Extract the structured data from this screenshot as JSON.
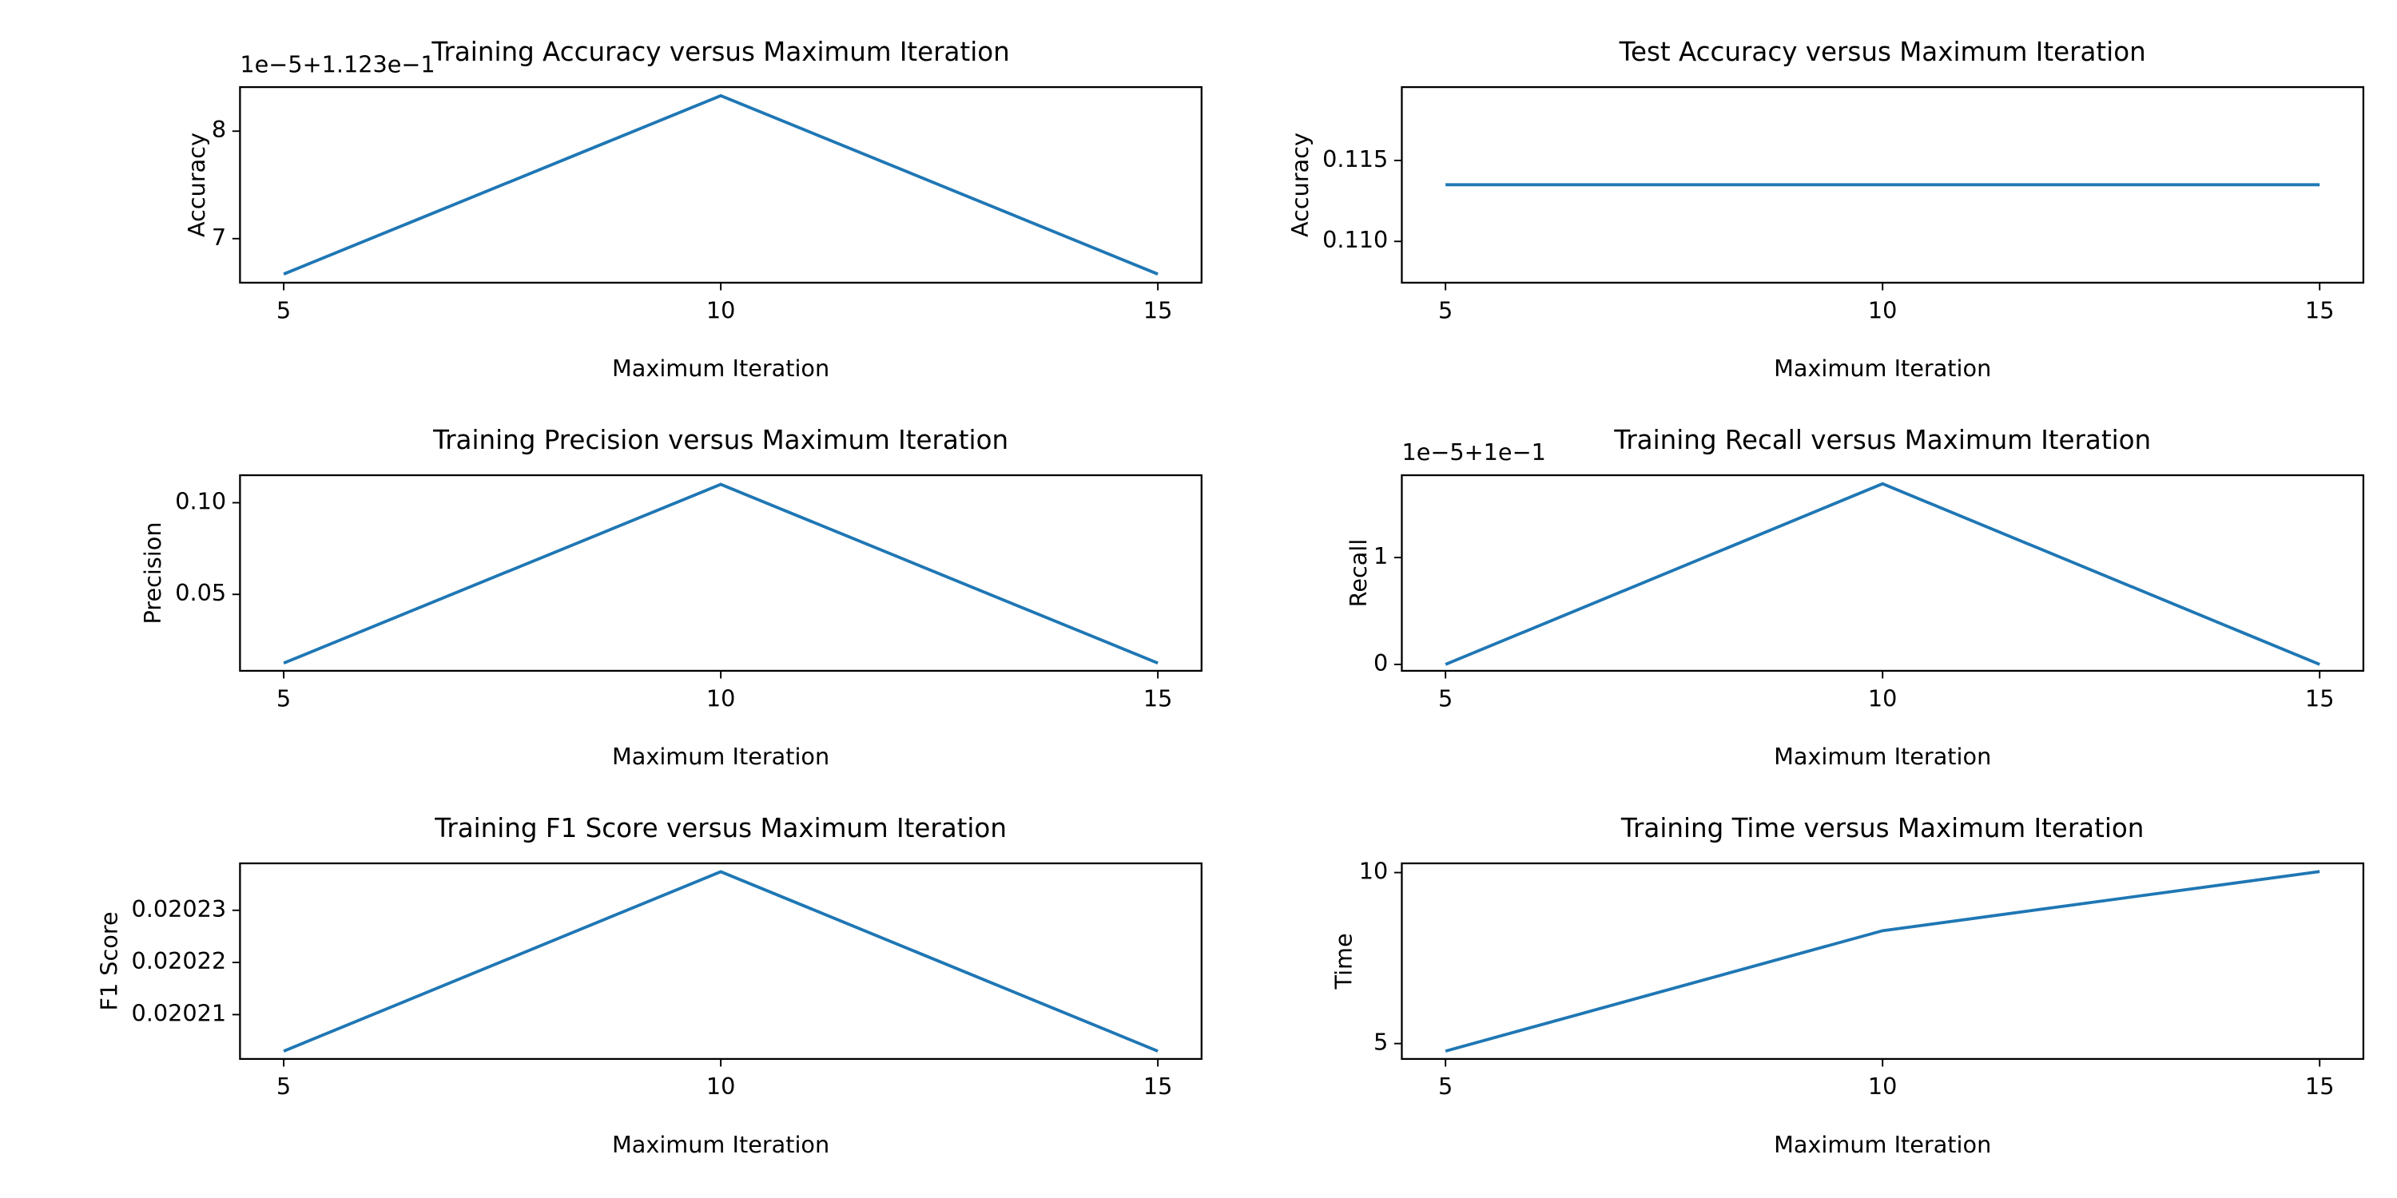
{
  "chart_data": [
    {
      "type": "line",
      "title": "Training Accuracy versus Maximum Iteration",
      "xlabel": "Maximum Iteration",
      "ylabel": "Accuracy",
      "offset_text": "1e−5+1.123e−1",
      "x": [
        5,
        10,
        15
      ],
      "series": [
        {
          "color": "#1f77b4",
          "values": [
            6.67,
            8.33,
            6.67
          ]
        }
      ],
      "xlim": [
        4.5,
        15.5
      ],
      "xticks": [
        5,
        10,
        15
      ],
      "ylim": [
        6.59,
        8.41
      ],
      "yticks": [
        7,
        8
      ]
    },
    {
      "type": "line",
      "title": "Test Accuracy versus Maximum Iteration",
      "xlabel": "Maximum Iteration",
      "ylabel": "Accuracy",
      "x": [
        5,
        10,
        15
      ],
      "series": [
        {
          "color": "#1f77b4",
          "values": [
            0.1135,
            0.1135,
            0.1135
          ]
        }
      ],
      "xlim": [
        4.5,
        15.5
      ],
      "xticks": [
        5,
        10,
        15
      ],
      "ylim": [
        0.10745,
        0.11953
      ],
      "yticks": [
        {
          "value": 0.11,
          "label": "0.110"
        },
        0.115
      ]
    },
    {
      "type": "line",
      "title": "Training Precision versus Maximum Iteration",
      "xlabel": "Maximum Iteration",
      "ylabel": "Precision",
      "x": [
        5,
        10,
        15
      ],
      "series": [
        {
          "color": "#1f77b4",
          "values": [
            0.0125,
            0.11,
            0.0125
          ]
        }
      ],
      "xlim": [
        4.5,
        15.5
      ],
      "xticks": [
        5,
        10,
        15
      ],
      "ylim": [
        0.0083,
        0.115
      ],
      "yticks": [
        0.05,
        {
          "value": 0.1,
          "label": "0.10"
        }
      ]
    },
    {
      "type": "line",
      "title": "Training Recall versus Maximum Iteration",
      "xlabel": "Maximum Iteration",
      "ylabel": "Recall",
      "offset_text": "1e−5+1e−1",
      "x": [
        5,
        10,
        15
      ],
      "series": [
        {
          "color": "#1f77b4",
          "values": [
            0,
            1.69,
            0
          ]
        }
      ],
      "xlim": [
        4.5,
        15.5
      ],
      "xticks": [
        5,
        10,
        15
      ],
      "ylim": [
        -0.06,
        1.77
      ],
      "yticks": [
        0,
        1
      ]
    },
    {
      "type": "line",
      "title": "Training F1 Score versus Maximum Iteration",
      "xlabel": "Maximum Iteration",
      "ylabel": "F1 Score",
      "x": [
        5,
        10,
        15
      ],
      "series": [
        {
          "color": "#1f77b4",
          "values": [
            0.020203,
            0.0202374,
            0.020203
          ]
        }
      ],
      "xlim": [
        4.5,
        15.5
      ],
      "xticks": [
        5,
        10,
        15
      ],
      "ylim": [
        0.0202015,
        0.020239
      ],
      "yticks": [
        0.02021,
        0.02022,
        0.02023
      ]
    },
    {
      "type": "line",
      "title": "Training Time versus Maximum Iteration",
      "xlabel": "Maximum Iteration",
      "ylabel": "Time",
      "x": [
        5,
        10,
        15
      ],
      "series": [
        {
          "color": "#1f77b4",
          "values": [
            4.78,
            8.3,
            10.03
          ]
        }
      ],
      "xlim": [
        4.5,
        15.5
      ],
      "xticks": [
        5,
        10,
        15
      ],
      "ylim": [
        4.55,
        10.27
      ],
      "yticks": [
        5,
        10
      ]
    }
  ]
}
